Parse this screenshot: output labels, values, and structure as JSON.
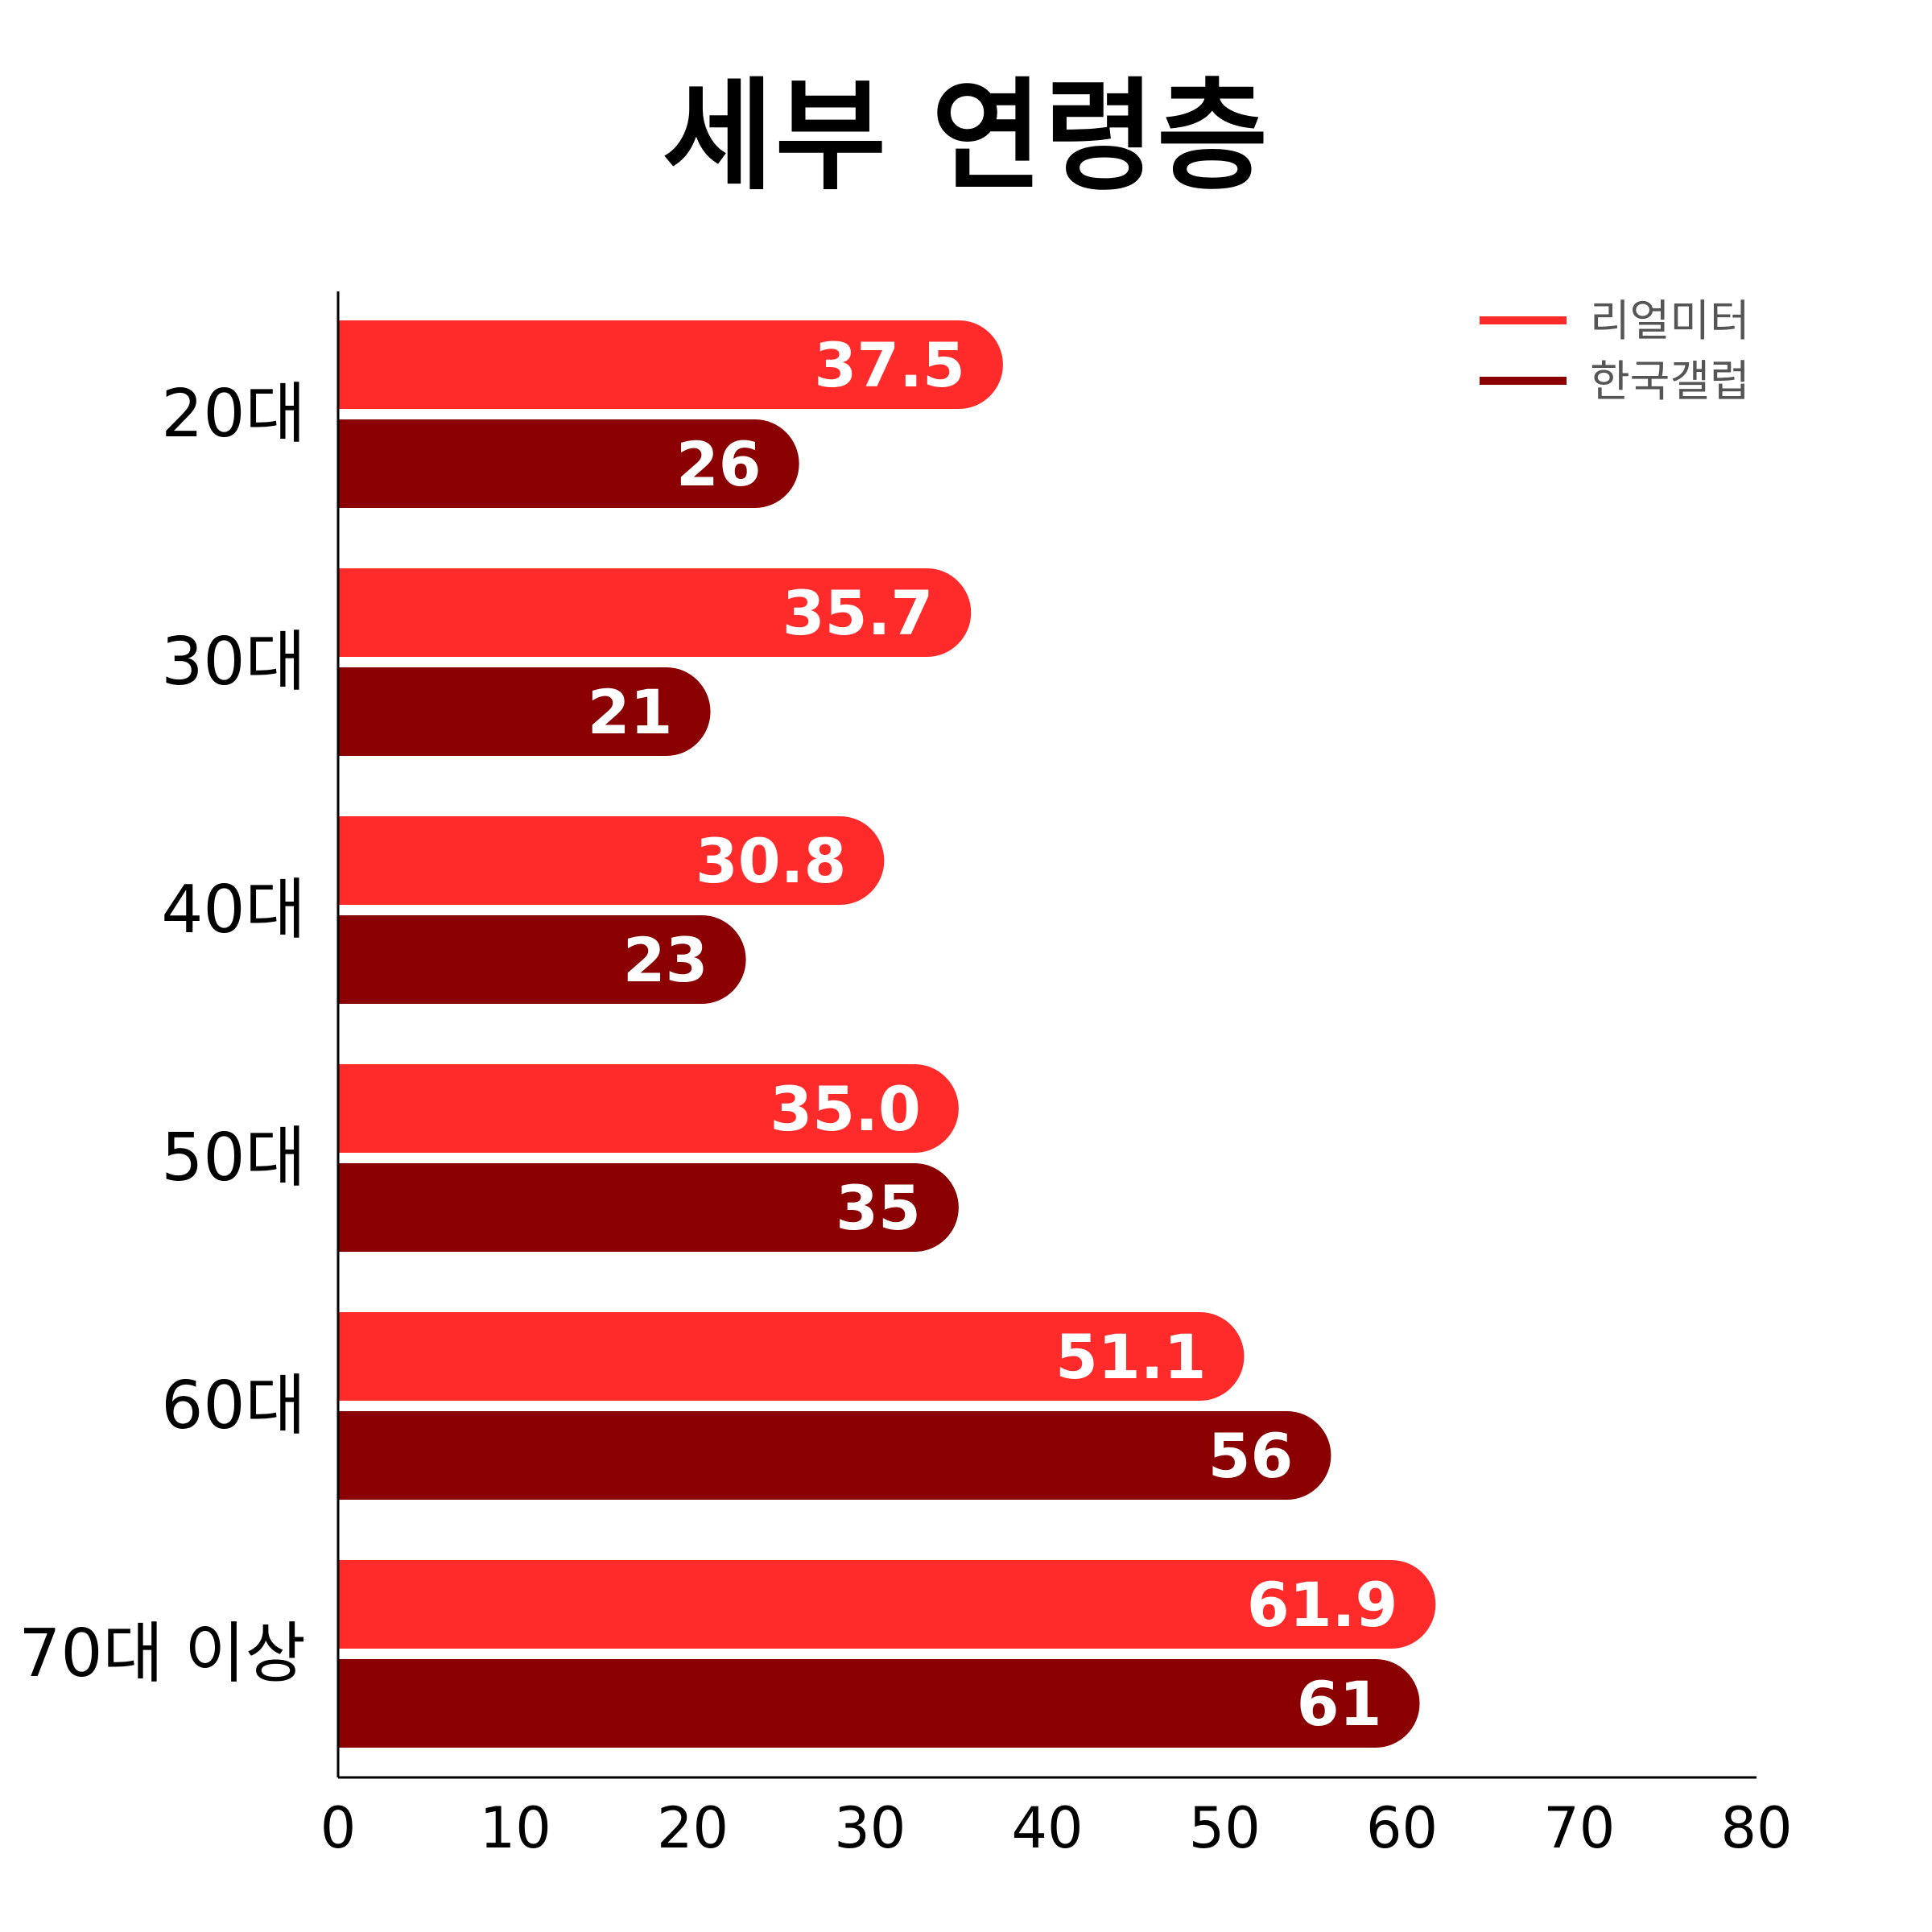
{
  "chart_data": {
    "type": "bar",
    "orientation": "horizontal",
    "title": "세부 연령층",
    "categories": [
      "20대",
      "30대",
      "40대",
      "50대",
      "60대",
      "70대 이상"
    ],
    "series": [
      {
        "name": "리얼미터",
        "color": "#ff2a2a",
        "values": [
          37.5,
          35.7,
          30.8,
          35.0,
          51.1,
          61.9
        ],
        "labels": [
          "37.5",
          "35.7",
          "30.8",
          "35.0",
          "51.1",
          "61.9"
        ]
      },
      {
        "name": "한국갤럽",
        "color": "#8b0000",
        "values": [
          26,
          21,
          23,
          35,
          56,
          61
        ],
        "labels": [
          "26",
          "21",
          "23",
          "35",
          "56",
          "61"
        ]
      }
    ],
    "xlim": [
      0,
      80
    ],
    "xticks": [
      0,
      10,
      20,
      30,
      40,
      50,
      60,
      70,
      80
    ],
    "xlabel": "",
    "ylabel": "",
    "grid": false,
    "legend_position": "top-right"
  }
}
